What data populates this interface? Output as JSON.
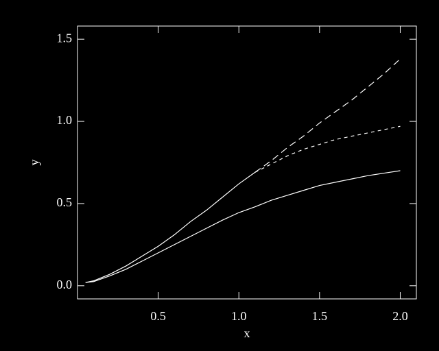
{
  "chart_data": {
    "type": "line",
    "xlabel": "x",
    "ylabel": "y",
    "x": [
      0.05,
      0.1,
      0.2,
      0.3,
      0.4,
      0.5,
      0.6,
      0.7,
      0.8,
      0.9,
      1.0,
      1.1,
      1.2,
      1.3,
      1.4,
      1.5,
      1.6,
      1.7,
      1.8,
      1.9,
      2.0
    ],
    "series": [
      {
        "color": "#ffffff",
        "dash": "solid",
        "values": [
          0.02,
          0.025,
          0.06,
          0.1,
          0.15,
          0.2,
          0.25,
          0.3,
          0.35,
          0.4,
          0.445,
          0.48,
          0.52,
          0.55,
          0.58,
          0.61,
          0.63,
          0.65,
          0.67,
          0.685,
          0.7
        ]
      },
      {
        "color": "#ffffff",
        "dash": "solid",
        "values": [
          0.02,
          0.03,
          0.07,
          0.12,
          0.18,
          0.24,
          0.31,
          0.39,
          0.46,
          0.54,
          0.62,
          0.69,
          null,
          null,
          null,
          null,
          null,
          null,
          null,
          null,
          null
        ]
      },
      {
        "color": "#ffffff",
        "dash": "long",
        "values": [
          null,
          null,
          null,
          null,
          null,
          null,
          null,
          null,
          null,
          null,
          null,
          0.69,
          0.76,
          0.84,
          0.91,
          0.99,
          1.06,
          1.13,
          1.21,
          1.29,
          1.38
        ]
      },
      {
        "color": "#ffffff",
        "dash": "short",
        "values": [
          null,
          null,
          null,
          null,
          null,
          null,
          null,
          null,
          null,
          null,
          null,
          0.69,
          0.74,
          0.79,
          0.83,
          0.86,
          0.89,
          0.91,
          0.93,
          0.95,
          0.97
        ]
      }
    ],
    "xlim": [
      0.0,
      2.1
    ],
    "ylim": [
      -0.08,
      1.58
    ],
    "xticks": [
      {
        "value": 0.5,
        "label": "0.5"
      },
      {
        "value": 1.0,
        "label": "1.0"
      },
      {
        "value": 1.5,
        "label": "1.5"
      },
      {
        "value": 2.0,
        "label": "2.0"
      }
    ],
    "yticks": [
      {
        "value": 0.0,
        "label": "0.0"
      },
      {
        "value": 0.5,
        "label": "0.5"
      },
      {
        "value": 1.0,
        "label": "1.0"
      },
      {
        "value": 1.5,
        "label": "1.5"
      }
    ],
    "background": "#000000",
    "axis_color": "#ffffff",
    "grid": false
  }
}
